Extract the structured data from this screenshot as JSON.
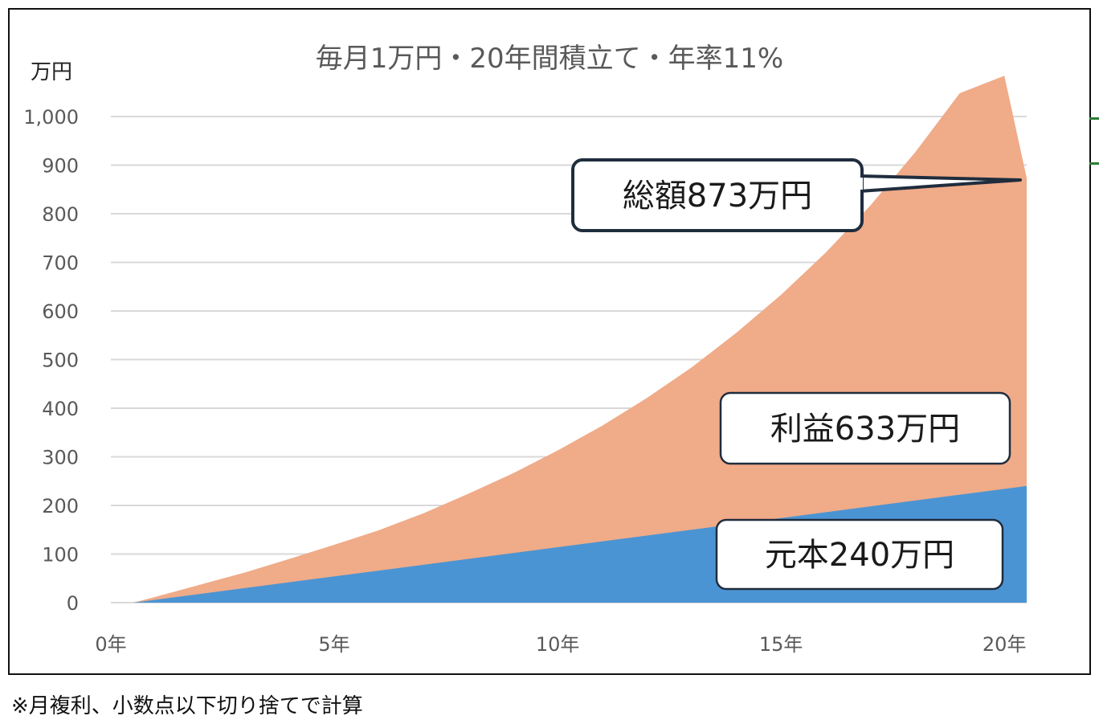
{
  "chart_data": {
    "type": "area",
    "title": "毎月1万円・20年間積立て・年率11%",
    "ylabel": "万円",
    "ylim": [
      0,
      1000
    ],
    "yticks": [
      "0",
      "100",
      "200",
      "300",
      "400",
      "500",
      "600",
      "700",
      "800",
      "900",
      "1,000"
    ],
    "xlim": [
      0,
      20.5
    ],
    "xticks": [
      {
        "value": 0,
        "label": "0年"
      },
      {
        "value": 5,
        "label": "5年"
      },
      {
        "value": 10,
        "label": "10年"
      },
      {
        "value": 15,
        "label": "15年"
      },
      {
        "value": 20,
        "label": "20年"
      }
    ],
    "series": [
      {
        "name": "元本",
        "color": "#4b94d3",
        "x": [
          0.5,
          20.5
        ],
        "values": [
          0,
          240
        ]
      },
      {
        "name": "利益",
        "color": "#f0ab88",
        "x": [
          0.5,
          1,
          2,
          3,
          4,
          5,
          6,
          7,
          8,
          9,
          10,
          11,
          12,
          13,
          14,
          15,
          16,
          17,
          18,
          19,
          20,
          20.5
        ],
        "values": [
          0,
          6,
          19,
          32,
          48,
          65,
          83,
          106,
          134,
          164,
          199,
          238,
          283,
          334,
          393,
          459,
          534,
          619,
          716,
          826,
          850,
          873
        ]
      }
    ],
    "grid": true,
    "callouts": [
      {
        "id": "total",
        "text": "総額873万円"
      },
      {
        "id": "profit",
        "text": "利益633万円"
      },
      {
        "id": "principal",
        "text": "元本240万円"
      }
    ]
  },
  "footnote": "※月複利、小数点以下切り捨てで計算",
  "colors": {
    "grid": "#d9d9d9",
    "callout_border": "#1f2d3d",
    "edge_mark": "#2e7d32"
  }
}
